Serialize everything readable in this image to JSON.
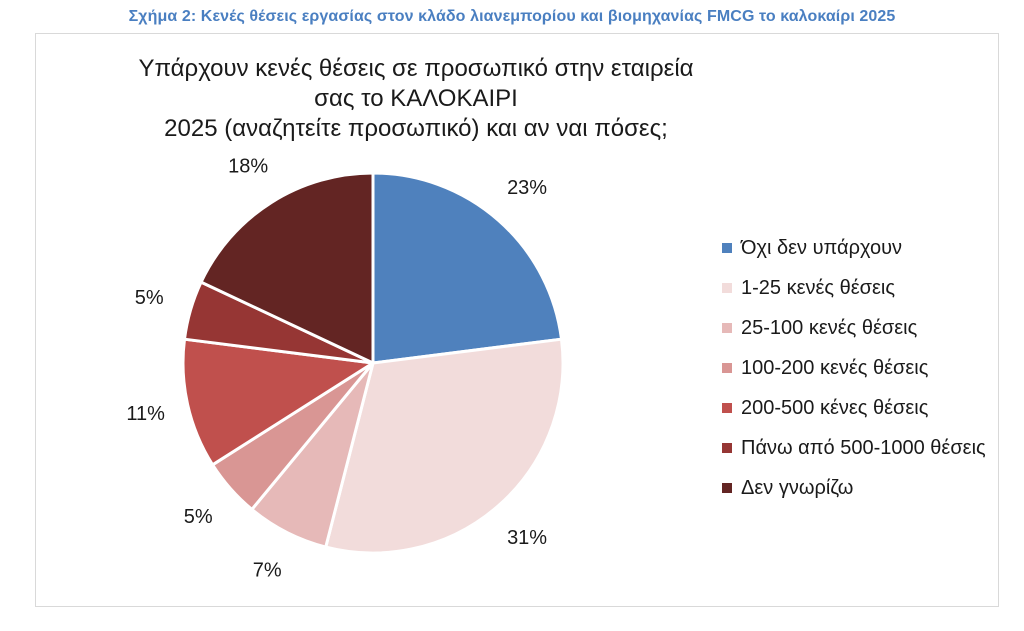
{
  "caption": "Σχήμα 2: Κενές θέσεις εργασίας στον κλάδο λιανεμπορίου και βιομηχανίας FMCG το καλοκαίρι 2025",
  "chart_data": {
    "type": "pie",
    "title_lines": [
      "Υπάρχουν κενές θέσεις σε προσωπικό στην εταιρεία σας το ΚΑΛΟΚΑΙΡΙ",
      "2025 (αναζητείτε προσωπικό) και αν ναι πόσες;"
    ],
    "legend_placement": "right",
    "slices": [
      {
        "label": "Όχι δεν υπάρχουν",
        "value": 23,
        "display": "23%",
        "color": "#4f81bd"
      },
      {
        "label": "1-25 κενές θέσεις",
        "value": 31,
        "display": "31%",
        "color": "#f2dcdb"
      },
      {
        "label": "25-100 κενές θέσεις",
        "value": 7,
        "display": "7%",
        "color": "#e6b9b8"
      },
      {
        "label": "100-200 κενές θέσεις",
        "value": 5,
        "display": "5%",
        "color": "#d99694"
      },
      {
        "label": "200-500 κένες θέσεις",
        "value": 11,
        "display": "11%",
        "color": "#c0504d"
      },
      {
        "label": "Πάνω από 500-1000 θέσεις",
        "value": 5,
        "display": "5%",
        "color": "#963634"
      },
      {
        "label": "Δεν γνωρίζω",
        "value": 18,
        "display": "18%",
        "color": "#632523"
      }
    ]
  }
}
